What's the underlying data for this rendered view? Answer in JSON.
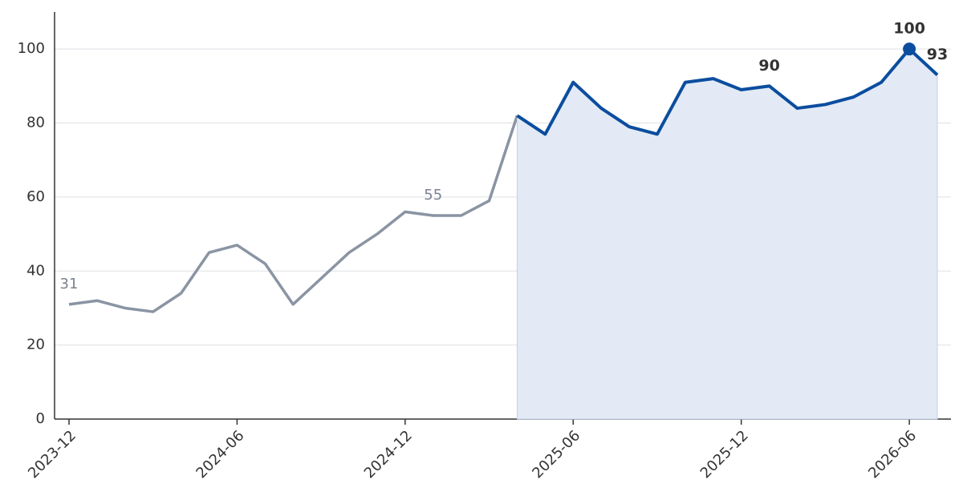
{
  "chart_data": {
    "type": "line",
    "categories": [
      "2023-12",
      null,
      null,
      null,
      null,
      null,
      "2024-06",
      null,
      null,
      null,
      null,
      null,
      "2024-12",
      null,
      null,
      null,
      null,
      null,
      "2025-06",
      null,
      null,
      null,
      null,
      null,
      "2025-12",
      null,
      null,
      null,
      null,
      null,
      "2026-06",
      null
    ],
    "series": [
      {
        "color": "#8a94a3",
        "values": [
          31,
          32,
          30,
          29,
          34,
          45,
          47,
          42,
          31,
          38,
          45,
          50,
          56,
          55,
          55,
          59,
          82,
          null,
          null,
          null,
          null,
          null,
          null,
          null,
          null,
          null,
          null,
          null,
          null,
          null,
          null,
          null
        ],
        "value_labels": [
          "31",
          null,
          null,
          null,
          null,
          null,
          null,
          null,
          null,
          null,
          null,
          null,
          null,
          "55",
          null,
          null,
          null,
          null,
          null,
          null,
          null,
          null,
          null,
          null,
          null,
          null,
          null,
          null,
          null,
          null,
          null,
          null
        ]
      },
      {
        "color": "#0b4d9f",
        "fill": "#e3eaf5",
        "values": [
          null,
          null,
          null,
          null,
          null,
          null,
          null,
          null,
          null,
          null,
          null,
          null,
          null,
          null,
          null,
          null,
          82,
          77,
          91,
          84,
          79,
          77,
          91,
          92,
          89,
          90,
          84,
          85,
          87,
          91,
          100,
          93
        ],
        "value_labels": [
          null,
          null,
          null,
          null,
          null,
          null,
          null,
          null,
          null,
          null,
          null,
          null,
          null,
          null,
          null,
          null,
          null,
          null,
          null,
          null,
          null,
          null,
          null,
          null,
          null,
          "90",
          null,
          null,
          null,
          null,
          "100",
          "93"
        ]
      }
    ],
    "ylim": [
      0,
      110
    ],
    "yticks": [
      0,
      20,
      40,
      60,
      80,
      100
    ],
    "grid": true
  }
}
